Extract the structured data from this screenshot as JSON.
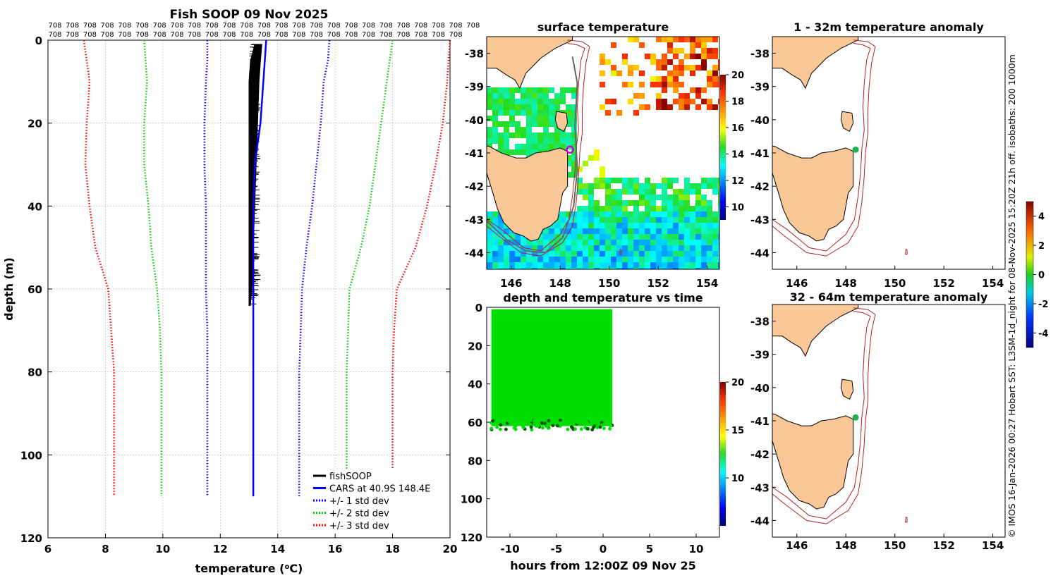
{
  "colors": {
    "land": "#f9c896",
    "fishsoop": "#000000",
    "cars": "#0000ff",
    "std1": "#0000ff",
    "std2": "#00cc00",
    "std3": "#ff0000",
    "isobath": "#b22222",
    "scatter": "#00dd00",
    "marker_sst": "#cc00cc",
    "marker_anom": "#22b14c",
    "grid": "#bbbbbb"
  },
  "chart_data": [
    {
      "id": "profile",
      "type": "line",
      "title": "Fish SOOP 09 Nov 2025",
      "xlabel": "temperature (°C)",
      "ylabel": "depth (m)",
      "xlim": [
        6,
        20
      ],
      "ylim": [
        120,
        0
      ],
      "xticks": [
        6,
        8,
        10,
        12,
        14,
        16,
        18,
        20
      ],
      "yticks": [
        0,
        20,
        40,
        60,
        80,
        100,
        120
      ],
      "top_label_row1": [
        "708",
        "708",
        "708",
        "708",
        "708",
        "708",
        "708",
        "708",
        "708",
        "708",
        "708",
        "708",
        "708",
        "708",
        "708",
        "708",
        "708",
        "708",
        "708",
        "708",
        "708",
        "708",
        "708",
        "708",
        "708"
      ],
      "top_label_row2": [
        "708",
        "708",
        "708",
        "708",
        "708",
        "708",
        "708",
        "708",
        "708",
        "708",
        "708",
        "708",
        "708",
        "708",
        "708",
        "708",
        "708",
        "708",
        "708",
        "708",
        "708",
        "708",
        "708",
        "708"
      ],
      "legend": [
        "fishSOOP",
        "CARS at 40.9S 148.4E",
        "+/- 1 std dev",
        "+/- 2 std dev",
        "+/- 3 std dev"
      ],
      "series": [
        {
          "name": "fishSOOP",
          "style": "band",
          "depth": [
            1,
            5,
            10,
            20,
            30,
            40,
            50,
            60,
            64
          ],
          "tmin": [
            13.2,
            13.05,
            13.0,
            13.0,
            13.0,
            13.0,
            13.0,
            13.0,
            13.0
          ],
          "tmax": [
            13.45,
            13.4,
            13.35,
            13.3,
            13.25,
            13.2,
            13.15,
            13.1,
            13.05
          ]
        },
        {
          "name": "CARS at 40.9S 148.4E",
          "style": "solid",
          "depth": [
            0,
            5,
            10,
            20,
            30,
            40,
            50,
            60,
            70,
            80,
            90,
            100,
            110
          ],
          "temp": [
            13.6,
            13.55,
            13.5,
            13.4,
            13.2,
            13.15,
            13.15,
            13.15,
            13.15,
            13.15,
            13.15,
            13.15,
            13.15
          ]
        },
        {
          "name": "+1 std dev",
          "style": "dotted",
          "depth": [
            0,
            5,
            10,
            20,
            30,
            40,
            50,
            60,
            70,
            80,
            90,
            100,
            110
          ],
          "temp": [
            15.8,
            15.75,
            15.6,
            15.5,
            15.35,
            15.2,
            15.0,
            14.85,
            14.8,
            14.75,
            14.75,
            14.75,
            14.75
          ]
        },
        {
          "name": "-1 std dev",
          "style": "dotted",
          "depth": [
            0,
            5,
            10,
            20,
            30,
            40,
            50,
            60,
            70,
            80,
            90,
            100,
            110
          ],
          "temp": [
            11.55,
            11.55,
            11.5,
            11.45,
            11.45,
            11.5,
            11.5,
            11.5,
            11.55,
            11.55,
            11.55,
            11.55,
            11.55
          ]
        },
        {
          "name": "+2 std dev",
          "style": "dotted",
          "depth": [
            0,
            5,
            10,
            20,
            30,
            40,
            50,
            60,
            70,
            80,
            90,
            100,
            110
          ],
          "temp": [
            18.0,
            17.9,
            17.8,
            17.6,
            17.4,
            17.2,
            16.9,
            16.5,
            16.45,
            16.4,
            16.4,
            16.4,
            16.4
          ]
        },
        {
          "name": "-2 std dev",
          "style": "dotted",
          "depth": [
            0,
            5,
            10,
            20,
            30,
            40,
            50,
            60,
            70,
            80,
            90,
            100,
            110
          ],
          "temp": [
            9.35,
            9.4,
            9.45,
            9.35,
            9.35,
            9.5,
            9.6,
            9.8,
            9.9,
            9.95,
            9.95,
            9.95,
            9.95
          ]
        },
        {
          "name": "+3 std dev",
          "style": "dotted",
          "depth": [
            0,
            5,
            10,
            20,
            30,
            40,
            50,
            60,
            70,
            80,
            90,
            100,
            110
          ],
          "temp": [
            20.0,
            19.95,
            19.9,
            19.75,
            19.5,
            19.2,
            18.8,
            18.15,
            18.05,
            18.0,
            18.0,
            18.0,
            18.0
          ]
        },
        {
          "name": "-3 std dev",
          "style": "dotted",
          "depth": [
            0,
            5,
            10,
            20,
            30,
            40,
            50,
            60,
            70,
            80,
            90,
            100,
            110
          ],
          "temp": [
            7.25,
            7.35,
            7.45,
            7.35,
            7.3,
            7.45,
            7.65,
            8.1,
            8.2,
            8.3,
            8.3,
            8.3,
            8.3
          ]
        }
      ]
    },
    {
      "id": "sst",
      "type": "heatmap",
      "title": "surface temperature",
      "xlim": [
        145,
        154.5
      ],
      "ylim": [
        -44.5,
        -37.5
      ],
      "xticks": [
        146,
        148,
        150,
        152,
        154
      ],
      "yticks": [
        -38,
        -39,
        -40,
        -41,
        -42,
        -43,
        -44
      ],
      "colorbar": {
        "min": 9,
        "max": 20,
        "ticks": [
          10,
          12,
          14,
          16,
          18,
          20
        ]
      },
      "marker": {
        "lon": 148.4,
        "lat": -40.9
      }
    },
    {
      "id": "timeseries",
      "type": "scatter",
      "title": "depth and temperature vs time",
      "xlabel": "hours from 12:00Z 09 Nov 25",
      "xlim": [
        -12.5,
        12.5
      ],
      "ylim": [
        120,
        0
      ],
      "xticks": [
        -10,
        -5,
        0,
        5,
        10
      ],
      "yticks": [
        0,
        20,
        40,
        60,
        80,
        100,
        120
      ],
      "data_extent": {
        "t_start": -12.0,
        "t_end": 1.0,
        "depth_min": 1,
        "depth_max": 62
      },
      "temperature": 13.2,
      "colorbar": {
        "min": 5,
        "max": 20,
        "ticks": [
          10,
          15,
          20
        ]
      }
    },
    {
      "id": "anom1",
      "type": "heatmap",
      "title": "1 - 32m temperature anomaly",
      "xlim": [
        145,
        154.5
      ],
      "ylim": [
        -44.5,
        -37.5
      ],
      "xticks": [
        146,
        148,
        150,
        152,
        154
      ],
      "yticks": [
        -38,
        -39,
        -40,
        -41,
        -42,
        -43,
        -44
      ],
      "marker": {
        "lon": 148.4,
        "lat": -40.9,
        "anomaly": 0
      }
    },
    {
      "id": "anom2",
      "type": "heatmap",
      "title": "32 - 64m temperature anomaly",
      "xlim": [
        145,
        154.5
      ],
      "ylim": [
        -44.5,
        -37.5
      ],
      "xticks": [
        146,
        148,
        150,
        152,
        154
      ],
      "yticks": [
        -38,
        -39,
        -40,
        -41,
        -42,
        -43,
        -44
      ],
      "marker": {
        "lon": 148.4,
        "lat": -40.9,
        "anomaly": 0
      }
    },
    {
      "id": "anomaly_colorbar",
      "type": "colorbar",
      "min": -5,
      "max": 5,
      "ticks": [
        -4,
        -2,
        0,
        2,
        4
      ]
    }
  ],
  "side_caption": "© IMOS 16-Jan-2026 00:27 Hobart SST: L3SM-1d_night for 08-Nov-2025 15:20Z 21h off. isobaths: 200  1000m"
}
